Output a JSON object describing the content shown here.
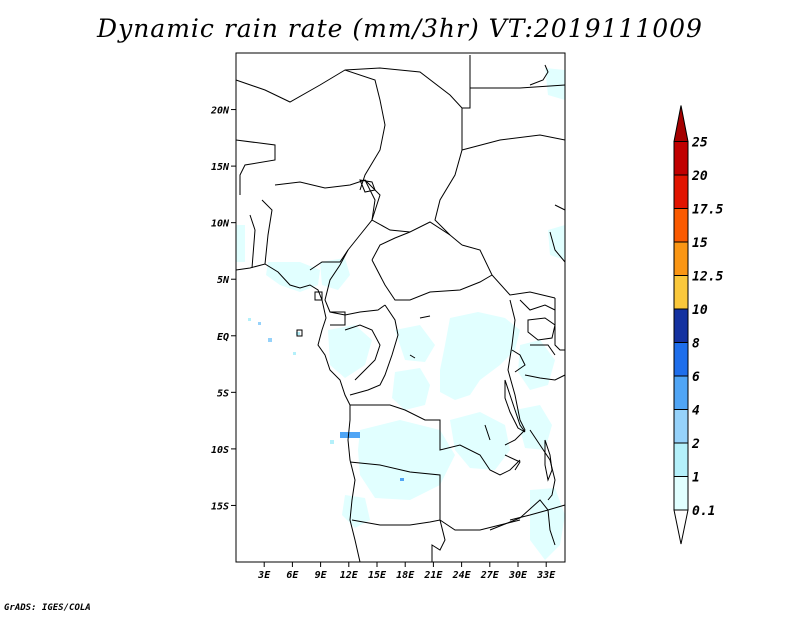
{
  "title": "Dynamic rain rate (mm/3hr) VT:2019111009",
  "credit": "GrADS: IGES/COLA",
  "map": {
    "lon_range": [
      0,
      35
    ],
    "lat_range": [
      -20,
      25
    ],
    "lat_ticks": [
      {
        "value": 20,
        "label": "20N"
      },
      {
        "value": 15,
        "label": "15N"
      },
      {
        "value": 10,
        "label": "10N"
      },
      {
        "value": 5,
        "label": "5N"
      },
      {
        "value": 0,
        "label": "EQ"
      },
      {
        "value": -5,
        "label": "5S"
      },
      {
        "value": -10,
        "label": "10S"
      },
      {
        "value": -15,
        "label": "15S"
      }
    ],
    "lon_ticks": [
      {
        "value": 3,
        "label": "3E"
      },
      {
        "value": 6,
        "label": "6E"
      },
      {
        "value": 9,
        "label": "9E"
      },
      {
        "value": 12,
        "label": "12E"
      },
      {
        "value": 15,
        "label": "15E"
      },
      {
        "value": 18,
        "label": "18E"
      },
      {
        "value": 21,
        "label": "21E"
      },
      {
        "value": 24,
        "label": "24E"
      },
      {
        "value": 27,
        "label": "27E"
      },
      {
        "value": 30,
        "label": "30E"
      },
      {
        "value": 33,
        "label": "33E"
      }
    ]
  },
  "colorbar": {
    "levels": [
      {
        "label": "0.1",
        "color": "#ffffff"
      },
      {
        "label": "1",
        "color": "#e1ffff"
      },
      {
        "label": "2",
        "color": "#b4f0fa"
      },
      {
        "label": "4",
        "color": "#96d2fa"
      },
      {
        "label": "6",
        "color": "#50a5f5"
      },
      {
        "label": "8",
        "color": "#1e6eeb"
      },
      {
        "label": "10",
        "color": "#1432a0"
      },
      {
        "label": "12.5",
        "color": "#fac83c"
      },
      {
        "label": "15",
        "color": "#fa9614"
      },
      {
        "label": "17.5",
        "color": "#fa5a00"
      },
      {
        "label": "20",
        "color": "#e11400"
      },
      {
        "label": "25",
        "color": "#c00000"
      }
    ],
    "top_color": "#a50000"
  }
}
